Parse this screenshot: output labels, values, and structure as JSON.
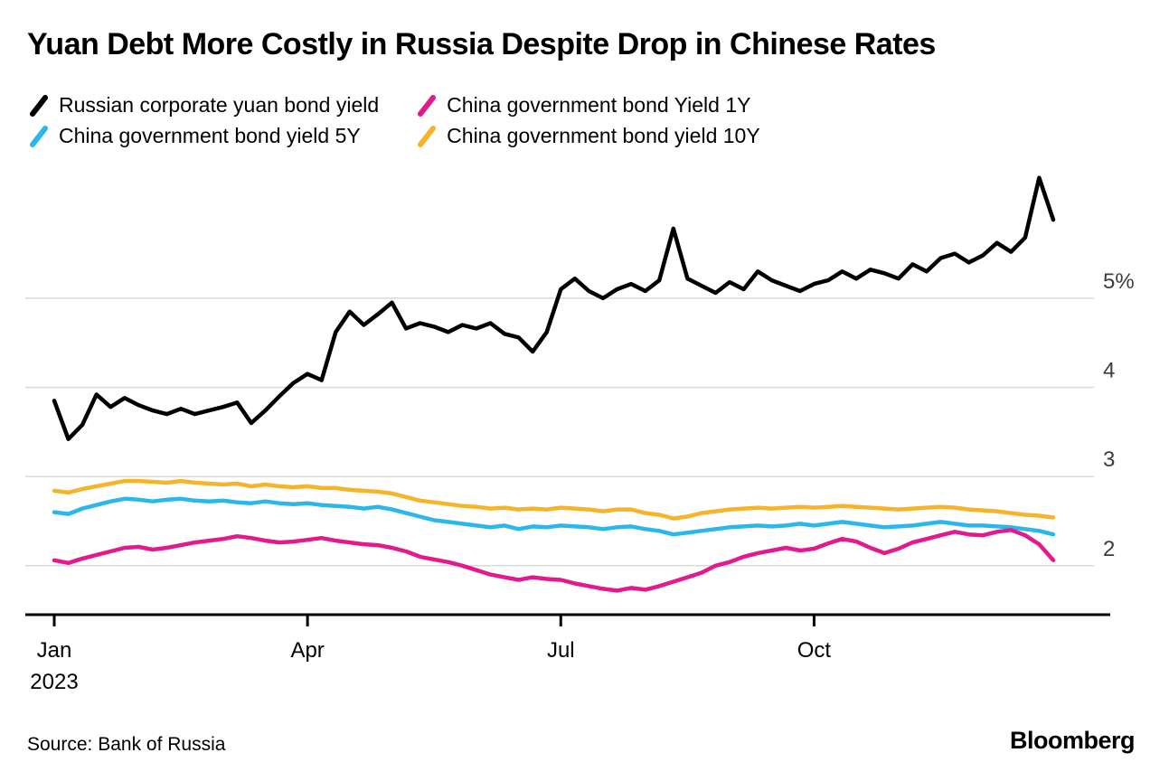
{
  "title": "Yuan Debt More Costly in Russia Despite Drop in Chinese Rates",
  "source": "Source: Bank of Russia",
  "logo": "Bloomberg",
  "colors": {
    "grid": "#d9d9d9",
    "axis": "#000000",
    "tick_label": "#000000",
    "y_label": "#3c3c3c"
  },
  "chart_data": {
    "type": "line",
    "title": "Yuan Debt More Costly in Russia Despite Drop in Chinese Rates",
    "xlabel": "",
    "ylabel": "",
    "x_tick_labels": [
      "Jan",
      "Apr",
      "Jul",
      "Oct"
    ],
    "x_tick_indices": [
      0,
      18,
      36,
      54
    ],
    "x_year_label": "2023",
    "y_ticks": [
      2,
      3,
      4,
      5
    ],
    "y_tick_labels": [
      "2",
      "3",
      "4",
      "5%"
    ],
    "ylim": [
      1.45,
      6.55
    ],
    "grid": "horizontal",
    "legend_position": "top",
    "series": [
      {
        "name": "Russian corporate yuan bond yield",
        "color": "#000000",
        "values": [
          3.85,
          3.42,
          3.58,
          3.92,
          3.78,
          3.88,
          3.8,
          3.74,
          3.7,
          3.76,
          3.7,
          3.74,
          3.78,
          3.83,
          3.6,
          3.74,
          3.9,
          4.05,
          4.15,
          4.08,
          4.62,
          4.85,
          4.7,
          4.82,
          4.95,
          4.66,
          4.72,
          4.68,
          4.62,
          4.7,
          4.66,
          4.72,
          4.6,
          4.56,
          4.4,
          4.62,
          5.1,
          5.22,
          5.08,
          5.0,
          5.1,
          5.16,
          5.08,
          5.2,
          5.78,
          5.22,
          5.14,
          5.06,
          5.18,
          5.1,
          5.3,
          5.2,
          5.14,
          5.08,
          5.16,
          5.2,
          5.3,
          5.22,
          5.32,
          5.28,
          5.22,
          5.38,
          5.3,
          5.45,
          5.5,
          5.4,
          5.48,
          5.62,
          5.52,
          5.68,
          6.35,
          5.88
        ]
      },
      {
        "name": "China government bond Yield 1Y",
        "color": "#e31a8d",
        "values": [
          2.06,
          2.03,
          2.08,
          2.12,
          2.16,
          2.2,
          2.21,
          2.18,
          2.2,
          2.23,
          2.26,
          2.28,
          2.3,
          2.33,
          2.31,
          2.28,
          2.26,
          2.27,
          2.29,
          2.31,
          2.28,
          2.26,
          2.24,
          2.23,
          2.2,
          2.16,
          2.1,
          2.07,
          2.04,
          2.0,
          1.95,
          1.9,
          1.87,
          1.84,
          1.87,
          1.85,
          1.84,
          1.8,
          1.77,
          1.74,
          1.72,
          1.75,
          1.73,
          1.77,
          1.82,
          1.87,
          1.92,
          2.0,
          2.04,
          2.1,
          2.14,
          2.17,
          2.2,
          2.17,
          2.19,
          2.25,
          2.3,
          2.27,
          2.2,
          2.14,
          2.19,
          2.26,
          2.3,
          2.34,
          2.38,
          2.35,
          2.34,
          2.38,
          2.4,
          2.34,
          2.24,
          2.06
        ]
      },
      {
        "name": "China government bond yield 5Y",
        "color": "#2cb7ea",
        "values": [
          2.6,
          2.58,
          2.64,
          2.68,
          2.72,
          2.75,
          2.74,
          2.72,
          2.74,
          2.75,
          2.73,
          2.72,
          2.73,
          2.71,
          2.7,
          2.72,
          2.7,
          2.69,
          2.7,
          2.68,
          2.67,
          2.66,
          2.64,
          2.66,
          2.63,
          2.59,
          2.55,
          2.51,
          2.49,
          2.47,
          2.45,
          2.43,
          2.45,
          2.41,
          2.44,
          2.43,
          2.45,
          2.44,
          2.43,
          2.41,
          2.43,
          2.44,
          2.41,
          2.39,
          2.35,
          2.37,
          2.39,
          2.41,
          2.43,
          2.44,
          2.45,
          2.44,
          2.45,
          2.47,
          2.45,
          2.47,
          2.49,
          2.47,
          2.45,
          2.43,
          2.44,
          2.45,
          2.47,
          2.49,
          2.47,
          2.45,
          2.45,
          2.44,
          2.43,
          2.41,
          2.39,
          2.35
        ]
      },
      {
        "name": "China government bond yield 10Y",
        "color": "#f5b42a",
        "values": [
          2.84,
          2.82,
          2.86,
          2.89,
          2.92,
          2.95,
          2.95,
          2.94,
          2.93,
          2.95,
          2.93,
          2.92,
          2.91,
          2.92,
          2.89,
          2.91,
          2.89,
          2.88,
          2.89,
          2.87,
          2.87,
          2.85,
          2.84,
          2.83,
          2.81,
          2.77,
          2.73,
          2.71,
          2.69,
          2.67,
          2.66,
          2.64,
          2.65,
          2.63,
          2.64,
          2.63,
          2.65,
          2.64,
          2.63,
          2.61,
          2.63,
          2.63,
          2.59,
          2.57,
          2.53,
          2.55,
          2.59,
          2.61,
          2.63,
          2.64,
          2.65,
          2.64,
          2.65,
          2.66,
          2.65,
          2.66,
          2.67,
          2.66,
          2.65,
          2.64,
          2.63,
          2.64,
          2.65,
          2.66,
          2.65,
          2.63,
          2.62,
          2.61,
          2.59,
          2.57,
          2.56,
          2.54
        ]
      }
    ]
  }
}
